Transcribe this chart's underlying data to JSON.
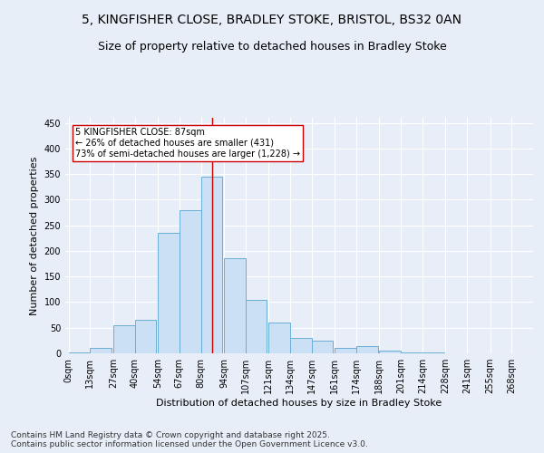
{
  "title_line1": "5, KINGFISHER CLOSE, BRADLEY STOKE, BRISTOL, BS32 0AN",
  "title_line2": "Size of property relative to detached houses in Bradley Stoke",
  "xlabel": "Distribution of detached houses by size in Bradley Stoke",
  "ylabel": "Number of detached properties",
  "bin_labels": [
    "0sqm",
    "13sqm",
    "27sqm",
    "40sqm",
    "54sqm",
    "67sqm",
    "80sqm",
    "94sqm",
    "107sqm",
    "121sqm",
    "134sqm",
    "147sqm",
    "161sqm",
    "174sqm",
    "188sqm",
    "201sqm",
    "214sqm",
    "228sqm",
    "241sqm",
    "255sqm",
    "268sqm"
  ],
  "bar_heights": [
    2,
    10,
    55,
    65,
    235,
    280,
    345,
    185,
    105,
    60,
    30,
    25,
    10,
    15,
    5,
    2,
    2,
    0,
    0,
    0,
    0
  ],
  "bar_left_edges": [
    0,
    13,
    27,
    40,
    54,
    67,
    80,
    94,
    107,
    121,
    134,
    147,
    161,
    174,
    188,
    201,
    214,
    228,
    241,
    255,
    268
  ],
  "bin_width": 13,
  "bar_face_color": "#cce0f5",
  "bar_edge_color": "#6baed6",
  "property_size": 87,
  "red_line_color": "#cc0000",
  "annotation_text": "5 KINGFISHER CLOSE: 87sqm\n← 26% of detached houses are smaller (431)\n73% of semi-detached houses are larger (1,228) →",
  "annotation_box_color": "#ffffff",
  "annotation_box_edge_color": "#cc0000",
  "ylim": [
    0,
    460
  ],
  "yticks": [
    0,
    50,
    100,
    150,
    200,
    250,
    300,
    350,
    400,
    450
  ],
  "background_color": "#e8eef8",
  "plot_background_color": "#e8eef8",
  "footer_text": "Contains HM Land Registry data © Crown copyright and database right 2025.\nContains public sector information licensed under the Open Government Licence v3.0.",
  "title_fontsize": 10,
  "subtitle_fontsize": 9,
  "axis_label_fontsize": 8,
  "tick_fontsize": 7,
  "footer_fontsize": 6.5
}
